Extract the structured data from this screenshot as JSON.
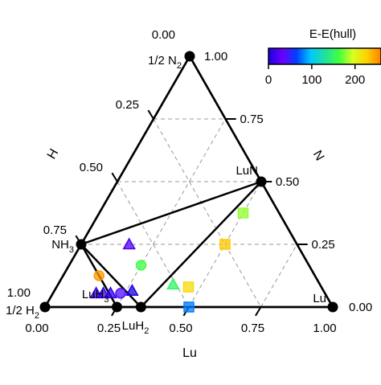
{
  "chart_data": {
    "type": "scatter",
    "subtype": "ternary",
    "axes": {
      "left": {
        "title": "H",
        "ticks": [
          "0.00",
          "0.25",
          "0.50",
          "0.75",
          "1.00"
        ]
      },
      "right": {
        "title": "N",
        "ticks": [
          "1.00",
          "0.75",
          "0.50",
          "0.25",
          "0.00"
        ]
      },
      "bottom": {
        "title": "Lu",
        "ticks": [
          "0.00",
          "0.25",
          "0.50",
          "0.75",
          "1.00"
        ]
      }
    },
    "vertices": {
      "top": "1/2 N₂",
      "left": "1/2 H₂",
      "right": "Lu"
    },
    "grid": true,
    "stable_phases": [
      {
        "name": "NH₃",
        "lu": 0.0,
        "n": 0.25,
        "h": 0.75
      },
      {
        "name": "LuN",
        "lu": 0.5,
        "n": 0.5,
        "h": 0.0
      },
      {
        "name": "LuH₃",
        "lu": 0.25,
        "n": 0.0,
        "h": 0.75
      },
      {
        "name": "LuH₂",
        "lu": 0.3333,
        "n": 0.0,
        "h": 0.6667
      },
      {
        "name": "1/2 N₂",
        "lu": 0.0,
        "n": 1.0,
        "h": 0.0
      },
      {
        "name": "1/2 H₂",
        "lu": 0.0,
        "n": 0.0,
        "h": 1.0
      },
      {
        "name": "Lu",
        "lu": 1.0,
        "n": 0.0,
        "h": 0.0
      }
    ],
    "hull_edges": [
      [
        "1/2 N₂",
        "LuN"
      ],
      [
        "LuN",
        "Lu"
      ],
      [
        "1/2 N₂",
        "1/2 H₂"
      ],
      [
        "1/2 H₂",
        "Lu"
      ],
      [
        "NH₃",
        "LuN"
      ],
      [
        "NH₃",
        "LuH₃"
      ],
      [
        "NH₃",
        "LuH₂"
      ],
      [
        "LuN",
        "LuH₂"
      ],
      [
        "LuH₃",
        "LuH₂"
      ]
    ],
    "metastable_points": [
      {
        "marker": "triangle",
        "lu": 0.1667,
        "n": 0.25,
        "e_above_hull": 20
      },
      {
        "marker": "square",
        "lu": 0.5,
        "n": 0.25,
        "e_above_hull": 230
      },
      {
        "marker": "square",
        "lu": 0.5,
        "n": 0.375,
        "e_above_hull": 180
      },
      {
        "marker": "circle",
        "lu": 0.125,
        "n": 0.125,
        "e_above_hull": 250
      },
      {
        "marker": "circle",
        "lu": 0.25,
        "n": 0.1667,
        "e_above_hull": 160
      },
      {
        "marker": "triangle",
        "lu": 0.15,
        "n": 0.055,
        "e_above_hull": 10
      },
      {
        "marker": "triangle",
        "lu": 0.175,
        "n": 0.055,
        "e_above_hull": 10
      },
      {
        "marker": "triangle",
        "lu": 0.2,
        "n": 0.055,
        "e_above_hull": 10
      },
      {
        "marker": "circle",
        "lu": 0.235,
        "n": 0.055,
        "e_above_hull": 40
      },
      {
        "marker": "triangle",
        "lu": 0.27,
        "n": 0.065,
        "e_above_hull": 0
      },
      {
        "marker": "triangle",
        "lu": 0.4,
        "n": 0.09,
        "e_above_hull": 150
      },
      {
        "marker": "square",
        "lu": 0.4583,
        "n": 0.08,
        "e_above_hull": 220
      },
      {
        "marker": "square",
        "lu": 0.5,
        "n": 0.0,
        "e_above_hull": 80
      }
    ],
    "colorbar": {
      "title": "E-E(hull)",
      "ticks": [
        "0",
        "100",
        "200"
      ],
      "range": [
        0,
        260
      ],
      "colors": [
        "#1c00e0",
        "#6a00ff",
        "#0040ff",
        "#00c8ff",
        "#20e0a0",
        "#40ff40",
        "#d8ff20",
        "#ffd000",
        "#ff8000"
      ]
    }
  }
}
